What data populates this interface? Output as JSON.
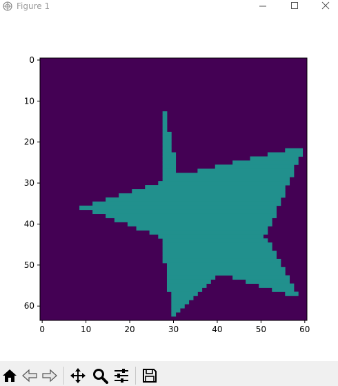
{
  "window": {
    "title": "Figure 1",
    "icon": "matplotlib-logo-icon"
  },
  "chart_data": {
    "type": "heatmap",
    "title": "",
    "xlabel": "",
    "ylabel": "",
    "shape": [
      64,
      61
    ],
    "xlim": [
      -0.5,
      60.5
    ],
    "ylim": [
      63.5,
      -0.5
    ],
    "x_ticks": [
      0,
      10,
      20,
      30,
      40,
      50,
      60
    ],
    "y_ticks": [
      0,
      10,
      20,
      30,
      40,
      50,
      60
    ],
    "colormap": "viridis",
    "colors": {
      "background": "#440154",
      "star": "#21908d"
    },
    "value_range": [
      0,
      1
    ],
    "shape_description": "five-pointed star of value 1 on a background of value 0",
    "star_vertices": [
      [
        28,
        12
      ],
      [
        31,
        28
      ],
      [
        60,
        21
      ],
      [
        51,
        43
      ],
      [
        59,
        58
      ],
      [
        41,
        52
      ],
      [
        30,
        63
      ],
      [
        27,
        43
      ],
      [
        9,
        36
      ],
      [
        27,
        30
      ]
    ],
    "grid": false,
    "legend": "none"
  },
  "toolbar": {
    "buttons": [
      {
        "name": "home",
        "icon": "home-icon"
      },
      {
        "name": "back",
        "icon": "arrow-left-icon"
      },
      {
        "name": "forward",
        "icon": "arrow-right-icon"
      },
      {
        "name": "pan",
        "icon": "move-icon"
      },
      {
        "name": "zoom",
        "icon": "zoom-icon"
      },
      {
        "name": "configure-subplots",
        "icon": "sliders-icon"
      },
      {
        "name": "save",
        "icon": "save-icon"
      }
    ]
  }
}
